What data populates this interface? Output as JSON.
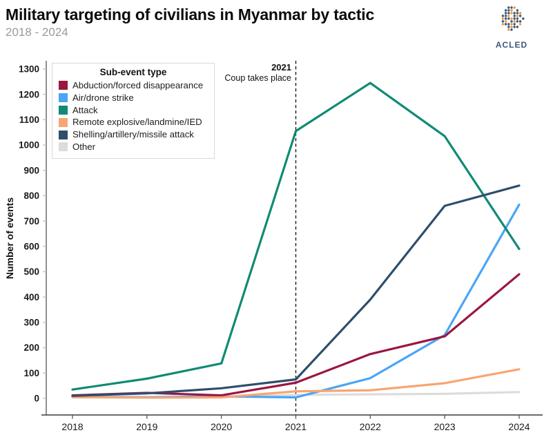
{
  "header": {
    "title": "Military targeting of civilians in Myanmar by tactic",
    "subtitle": "2018 - 2024",
    "logo_text": "ACLED"
  },
  "chart_data": {
    "type": "line",
    "x": [
      2018,
      2019,
      2020,
      2021,
      2022,
      2023,
      2024
    ],
    "xlabel": "",
    "ylabel": "Number of events",
    "ylim": [
      0,
      1300
    ],
    "ytick_step": 100,
    "grid": false,
    "legend_title": "Sub-event type",
    "legend_position": "top-left",
    "annotation": {
      "year_label": "2021",
      "text": "Coup takes place",
      "at_x": 2021,
      "line_style": "dashed"
    },
    "series": [
      {
        "name": "Abduction/forced disappearance",
        "color": "#9b1640",
        "values": [
          12,
          22,
          12,
          62,
          175,
          245,
          490
        ]
      },
      {
        "name": "Air/drone strike",
        "color": "#4aa5f5",
        "values": [
          6,
          5,
          8,
          4,
          80,
          250,
          765
        ]
      },
      {
        "name": "Attack",
        "color": "#108a74",
        "values": [
          35,
          78,
          138,
          1055,
          1245,
          1035,
          590
        ]
      },
      {
        "name": "Remote explosive/landmine/IED",
        "color": "#f7a572",
        "values": [
          5,
          3,
          4,
          28,
          32,
          60,
          115
        ]
      },
      {
        "name": "Shelling/artillery/missile attack",
        "color": "#2e4e6c",
        "values": [
          10,
          20,
          40,
          75,
          390,
          760,
          840
        ]
      },
      {
        "name": "Other",
        "color": "#dcdcdc",
        "values": [
          4,
          4,
          5,
          14,
          16,
          18,
          25
        ]
      }
    ]
  }
}
